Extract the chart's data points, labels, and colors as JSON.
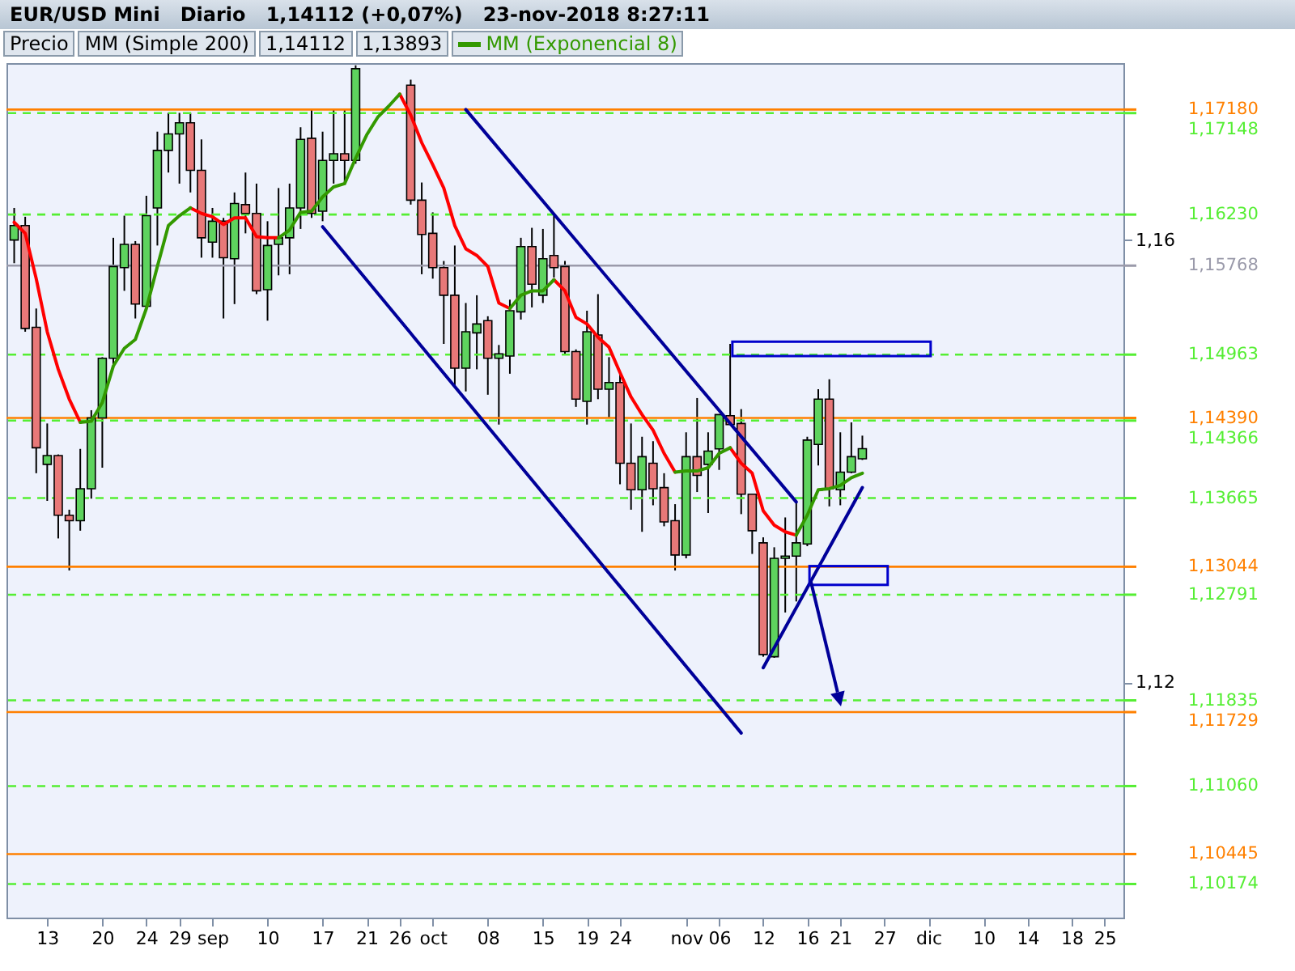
{
  "chart_data": {
    "type": "candlestick",
    "title": "EUR/USD Mini",
    "subtitle": "Diario   1,14112 (+0,07%)   23-nov-2018 8:27:11",
    "legend": "top left",
    "annotations": [
      "Precio",
      "MM (Simple 200)",
      "1,14112",
      "1,13893"
    ],
    "categories": [
      null,
      null,
      null,
      "13",
      null,
      null,
      null,
      null,
      "20",
      null,
      null,
      null,
      "24",
      null,
      null,
      "29",
      null,
      null,
      "sep",
      null,
      null,
      null,
      null,
      "10",
      null,
      null,
      null,
      null,
      "17",
      null,
      null,
      null,
      "21",
      null,
      null,
      "26",
      null,
      null,
      "oct",
      null,
      null,
      null,
      null,
      "08",
      null,
      null,
      null,
      null,
      "15",
      null,
      null,
      null,
      "19",
      null,
      null,
      "24",
      null,
      null,
      null,
      null,
      null,
      "nov",
      null,
      null,
      "06",
      null,
      null,
      null,
      "12",
      null,
      null,
      null,
      "16",
      null,
      null,
      "21",
      null,
      null,
      null,
      "27",
      null,
      null,
      null,
      "dic",
      null,
      null,
      null,
      null,
      "10",
      null,
      null,
      null,
      "14",
      null,
      null,
      null,
      "18",
      null,
      null,
      "25",
      null
    ],
    "ohlc": [
      [
        1.16,
        1.1629,
        1.1579,
        1.1613
      ],
      [
        1.1613,
        1.1621,
        1.1517,
        1.152
      ],
      [
        1.1521,
        1.1538,
        1.1389,
        1.1412
      ],
      [
        1.1397,
        1.1434,
        1.1364,
        1.1405
      ],
      [
        1.1405,
        1.1406,
        1.133,
        1.1351
      ],
      [
        1.1351,
        1.1356,
        1.1301,
        1.1346
      ],
      [
        1.1346,
        1.1411,
        1.1337,
        1.1375
      ],
      [
        1.1375,
        1.1446,
        1.1366,
        1.1439
      ],
      [
        1.1439,
        1.1494,
        1.1394,
        1.1493
      ],
      [
        1.1493,
        1.1602,
        1.1486,
        1.1576
      ],
      [
        1.1575,
        1.1622,
        1.1554,
        1.1596
      ],
      [
        1.1596,
        1.1599,
        1.1529,
        1.1542
      ],
      [
        1.154,
        1.164,
        1.154,
        1.1622
      ],
      [
        1.1629,
        1.1698,
        1.1595,
        1.1681
      ],
      [
        1.1681,
        1.1715,
        1.1661,
        1.1696
      ],
      [
        1.1696,
        1.1715,
        1.1651,
        1.1706
      ],
      [
        1.1706,
        1.1715,
        1.1643,
        1.1663
      ],
      [
        1.1663,
        1.1691,
        1.1584,
        1.1602
      ],
      [
        1.1598,
        1.1629,
        1.1584,
        1.1617
      ],
      [
        1.1617,
        1.162,
        1.1529,
        1.1584
      ],
      [
        1.1583,
        1.1643,
        1.1542,
        1.1633
      ],
      [
        1.1632,
        1.1661,
        1.1606,
        1.1624
      ],
      [
        1.1624,
        1.1651,
        1.1551,
        1.1554
      ],
      [
        1.1555,
        1.1617,
        1.1527,
        1.1595
      ],
      [
        1.1596,
        1.1647,
        1.1568,
        1.1602
      ],
      [
        1.1602,
        1.1651,
        1.1569,
        1.1629
      ],
      [
        1.1629,
        1.1702,
        1.161,
        1.1691
      ],
      [
        1.1692,
        1.1718,
        1.162,
        1.1624
      ],
      [
        1.1626,
        1.1698,
        1.1617,
        1.1672
      ],
      [
        1.1672,
        1.1718,
        1.1651,
        1.1678
      ],
      [
        1.1678,
        1.1718,
        1.165,
        1.1672
      ],
      [
        1.1672,
        1.1758,
        1.1669,
        1.1755
      ],
      null,
      null,
      null,
      null,
      [
        1.174,
        1.1745,
        1.1632,
        1.1636
      ],
      [
        1.1636,
        1.1652,
        1.1569,
        1.1605
      ],
      [
        1.1606,
        1.1625,
        1.1565,
        1.1575
      ],
      [
        1.1575,
        1.1581,
        1.1506,
        1.155
      ],
      [
        1.155,
        1.1595,
        1.1467,
        1.1484
      ],
      [
        1.1484,
        1.1543,
        1.1463,
        1.1517
      ],
      [
        1.1516,
        1.155,
        1.1483,
        1.1524
      ],
      [
        1.1527,
        1.1531,
        1.146,
        1.1493
      ],
      [
        1.1493,
        1.1505,
        1.1433,
        1.1497
      ],
      [
        1.1495,
        1.1546,
        1.1479,
        1.1536
      ],
      [
        1.1535,
        1.1602,
        1.1528,
        1.1594
      ],
      [
        1.1594,
        1.1611,
        1.1539,
        1.156
      ],
      [
        1.155,
        1.161,
        1.1543,
        1.1583
      ],
      [
        1.1586,
        1.1622,
        1.1566,
        1.1575
      ],
      [
        1.1576,
        1.1581,
        1.1497,
        1.1499
      ],
      [
        1.1499,
        1.1501,
        1.1449,
        1.1456
      ],
      [
        1.1454,
        1.1536,
        1.1433,
        1.1517
      ],
      [
        1.1514,
        1.1551,
        1.1456,
        1.1465
      ],
      [
        1.1465,
        1.1494,
        1.1439,
        1.1471
      ],
      [
        1.1471,
        1.1479,
        1.1379,
        1.1398
      ],
      [
        1.1398,
        1.1434,
        1.1356,
        1.1374
      ],
      [
        1.1374,
        1.1422,
        1.1336,
        1.1404
      ],
      [
        1.1398,
        1.1418,
        1.136,
        1.1375
      ],
      [
        1.1376,
        1.1389,
        1.1341,
        1.1345
      ],
      [
        1.1346,
        1.1361,
        1.1301,
        1.1315
      ],
      [
        1.1315,
        1.1426,
        1.1312,
        1.1404
      ],
      [
        1.1404,
        1.1457,
        1.1372,
        1.1387
      ],
      [
        1.1397,
        1.1426,
        1.1353,
        1.1409
      ],
      [
        1.1411,
        1.1442,
        1.1392,
        1.1442
      ],
      [
        1.1441,
        1.1506,
        1.1433,
        1.1433
      ],
      [
        1.1434,
        1.1447,
        1.1352,
        1.137
      ],
      [
        1.137,
        1.137,
        1.1316,
        1.1337
      ],
      [
        1.1326,
        1.1331,
        1.1223,
        1.1225
      ],
      [
        1.1223,
        1.1322,
        1.1222,
        1.1312
      ],
      [
        1.1312,
        1.1349,
        1.1263,
        1.1314
      ],
      [
        1.1314,
        1.1364,
        1.1273,
        1.1326
      ],
      [
        1.1325,
        1.1422,
        1.1323,
        1.1419
      ],
      [
        1.1415,
        1.1465,
        1.1396,
        1.1456
      ],
      [
        1.1456,
        1.1474,
        1.1359,
        1.1375
      ],
      [
        1.1374,
        1.1426,
        1.136,
        1.139
      ],
      [
        1.139,
        1.1435,
        1.1389,
        1.1404
      ],
      [
        1.1402,
        1.1423,
        1.1401,
        1.14112
      ],
      null,
      null,
      null,
      null,
      null,
      null,
      null,
      null,
      null,
      null,
      null,
      null,
      null,
      null,
      null,
      null,
      null,
      null,
      null,
      null,
      null,
      null,
      null
    ],
    "series": [
      {
        "type": "line",
        "color": "#ff0000",
        "values": [
          1.1616,
          1.1606,
          1.1565,
          1.1517,
          1.1483,
          1.1456,
          1.1435,
          null,
          null,
          null,
          null,
          null,
          null,
          null,
          null,
          null,
          1.1629,
          1.1624,
          1.1621,
          1.1614,
          1.162,
          1.162,
          1.1603,
          1.1602,
          1.1602,
          null,
          null,
          null,
          null,
          null,
          null,
          null,
          null,
          null,
          null,
          1.1732,
          1.1713,
          1.1688,
          1.1668,
          1.1647,
          1.1613,
          1.1592,
          1.1586,
          1.1576,
          1.1543,
          1.1538,
          null,
          null,
          null,
          1.1564,
          1.1554,
          1.153,
          1.1524,
          1.1512,
          1.1503,
          1.148,
          1.1458,
          1.1442,
          1.1428,
          1.1407,
          1.139,
          null,
          null,
          null,
          null,
          1.1412,
          1.1398,
          1.1389,
          1.1355,
          1.1342,
          1.1336,
          1.1333,
          null,
          null,
          null,
          null,
          null,
          null,
          null,
          null,
          null,
          null,
          null,
          null,
          null,
          null,
          null,
          null,
          null,
          null,
          null,
          null,
          null,
          null,
          null,
          null,
          null,
          null,
          null,
          null,
          null
        ]
      },
      {
        "type": "line",
        "name": "MM (Exponencial 8)",
        "color": "#339900",
        "values": [
          null,
          null,
          null,
          null,
          null,
          null,
          1.1435,
          1.1436,
          1.1453,
          1.1486,
          1.1502,
          1.151,
          1.1538,
          1.1576,
          1.1613,
          1.1622,
          1.1629,
          null,
          null,
          null,
          null,
          null,
          null,
          null,
          1.1602,
          1.1609,
          1.1625,
          1.1626,
          1.1639,
          1.1648,
          1.1651,
          1.1674,
          1.1695,
          1.1711,
          1.1721,
          1.1732,
          null,
          null,
          null,
          null,
          null,
          null,
          null,
          null,
          null,
          1.1538,
          1.155,
          1.1554,
          1.1554,
          1.1564,
          null,
          null,
          null,
          null,
          null,
          null,
          null,
          null,
          null,
          null,
          1.139,
          1.1391,
          1.1391,
          1.1394,
          1.1407,
          1.1412,
          null,
          null,
          null,
          null,
          null,
          1.1333,
          1.1351,
          1.1374,
          1.1375,
          1.1378,
          1.1385,
          1.1389,
          null,
          null,
          null,
          null,
          null,
          null,
          null,
          null,
          null,
          null,
          null,
          null,
          null,
          null,
          null,
          null,
          null,
          null,
          null,
          null,
          null,
          null,
          null
        ]
      },
      {
        "type": "line",
        "color": "#000099",
        "values": [
          null,
          null,
          null,
          null,
          null,
          null,
          null,
          null,
          null,
          null,
          null,
          null,
          null,
          null,
          null,
          null,
          null,
          null,
          null,
          null,
          null,
          null,
          null,
          null,
          null,
          null,
          null,
          null,
          null,
          null,
          null,
          null,
          null,
          null,
          null,
          null,
          null,
          null,
          null,
          null,
          null,
          1.1718,
          null,
          null,
          null,
          null,
          null,
          null,
          null,
          null,
          null,
          null,
          null,
          null,
          null,
          null,
          null,
          null,
          null,
          null,
          null,
          null,
          null,
          null,
          null,
          null,
          null,
          null,
          null,
          null,
          null,
          1.1363,
          null,
          null,
          null,
          null,
          null,
          null,
          null,
          null,
          null,
          null,
          null,
          null,
          null,
          null,
          null,
          null,
          null,
          null,
          null,
          null,
          null,
          null,
          null,
          null,
          null,
          null,
          null,
          null,
          null
        ]
      },
      {
        "type": "line",
        "color": "#000099",
        "values": [
          null,
          null,
          null,
          null,
          null,
          null,
          null,
          null,
          null,
          null,
          null,
          null,
          null,
          null,
          null,
          null,
          null,
          null,
          null,
          null,
          null,
          null,
          null,
          null,
          null,
          null,
          null,
          null,
          1.1612,
          null,
          null,
          null,
          null,
          null,
          null,
          null,
          null,
          null,
          null,
          null,
          null,
          null,
          null,
          null,
          null,
          null,
          null,
          null,
          null,
          null,
          null,
          null,
          null,
          null,
          null,
          null,
          null,
          null,
          null,
          null,
          null,
          null,
          null,
          null,
          null,
          null,
          1.1154,
          null,
          null,
          null,
          null,
          null,
          null,
          null,
          null,
          null,
          null,
          null,
          null,
          null,
          null,
          null,
          null,
          null,
          null,
          null,
          null,
          null,
          null,
          null,
          null,
          null,
          null,
          null,
          null,
          null,
          null,
          null,
          null,
          null,
          null
        ]
      },
      {
        "type": "line",
        "color": "#000099",
        "values": [
          null,
          null,
          null,
          null,
          null,
          null,
          null,
          null,
          null,
          null,
          null,
          null,
          null,
          null,
          null,
          null,
          null,
          null,
          null,
          null,
          null,
          null,
          null,
          null,
          null,
          null,
          null,
          null,
          null,
          null,
          null,
          null,
          null,
          null,
          null,
          null,
          null,
          null,
          null,
          null,
          null,
          null,
          null,
          null,
          null,
          null,
          null,
          null,
          null,
          null,
          null,
          null,
          null,
          null,
          null,
          null,
          null,
          null,
          null,
          null,
          null,
          null,
          null,
          null,
          null,
          null,
          null,
          null,
          1.1213,
          null,
          null,
          null,
          null,
          null,
          null,
          null,
          null,
          1.1376,
          null,
          null,
          null,
          null,
          null,
          null,
          null,
          null,
          null,
          null,
          null,
          null,
          null,
          null,
          null,
          null,
          null,
          null,
          null,
          null,
          null,
          null,
          null
        ]
      }
    ],
    "ylim": [
      1.0987,
      1.176
    ],
    "yticks": [
      {
        "value": 1.12,
        "label": "1,12"
      },
      {
        "value": 1.16,
        "label": "1,16"
      }
    ],
    "ref_lines": [
      {
        "axis": "y",
        "value": 1.1718,
        "label": "1,17180",
        "color": "#ff8000"
      },
      {
        "axis": "y",
        "value": 1.17148,
        "label": "1,17148",
        "color": "#55ee33",
        "line_style": "dashed"
      },
      {
        "axis": "y",
        "value": 1.1623,
        "label": "1,16230",
        "color": "#55ee33",
        "line_style": "dashed"
      },
      {
        "axis": "y",
        "value": 1.15768,
        "label": "1,15768",
        "color": "#9a9aaa"
      },
      {
        "axis": "y",
        "value": 1.14963,
        "label": "1,14963",
        "color": "#55ee33",
        "line_style": "dashed"
      },
      {
        "axis": "y",
        "value": 1.1439,
        "label": "1,14390",
        "color": "#ff8000"
      },
      {
        "axis": "y",
        "value": 1.14366,
        "label": "1,14366",
        "color": "#55ee33",
        "line_style": "dashed"
      },
      {
        "axis": "y",
        "value": 1.13665,
        "label": "1,13665",
        "color": "#55ee33",
        "line_style": "dashed"
      },
      {
        "axis": "y",
        "value": 1.13044,
        "label": "1,13044",
        "color": "#ff8000"
      },
      {
        "axis": "y",
        "value": 1.12791,
        "label": "1,12791",
        "color": "#55ee33",
        "line_style": "dashed"
      },
      {
        "axis": "y",
        "value": 1.11835,
        "label": "1,11835",
        "color": "#55ee33",
        "line_style": "dashed"
      },
      {
        "axis": "y",
        "value": 1.11729,
        "label": "1,11729",
        "color": "#ff8000"
      },
      {
        "axis": "y",
        "value": 1.1106,
        "label": "1,11060",
        "color": "#55ee33",
        "line_style": "dashed"
      },
      {
        "axis": "y",
        "value": 1.10445,
        "label": "1,10445",
        "color": "#ff8000"
      },
      {
        "axis": "y",
        "value": 1.10174,
        "label": "1,10174",
        "color": "#55ee33",
        "line_style": "dashed"
      }
    ]
  }
}
